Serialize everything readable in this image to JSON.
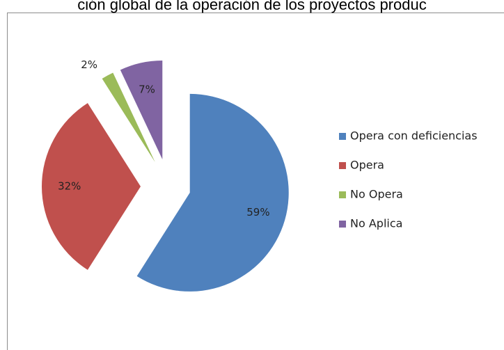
{
  "chart_data": {
    "type": "pie",
    "title": "ción global de la operación de los proyectos produc",
    "categories": [
      "Opera con deficiencias",
      "Opera",
      "No Opera",
      "No Aplica"
    ],
    "values": [
      59,
      32,
      2,
      7
    ],
    "value_labels": [
      "59%",
      "32%",
      "2%",
      "7%"
    ],
    "colors": [
      "#4f81bd",
      "#c0504d",
      "#9bbb59",
      "#8064a2"
    ],
    "legend": "right"
  }
}
